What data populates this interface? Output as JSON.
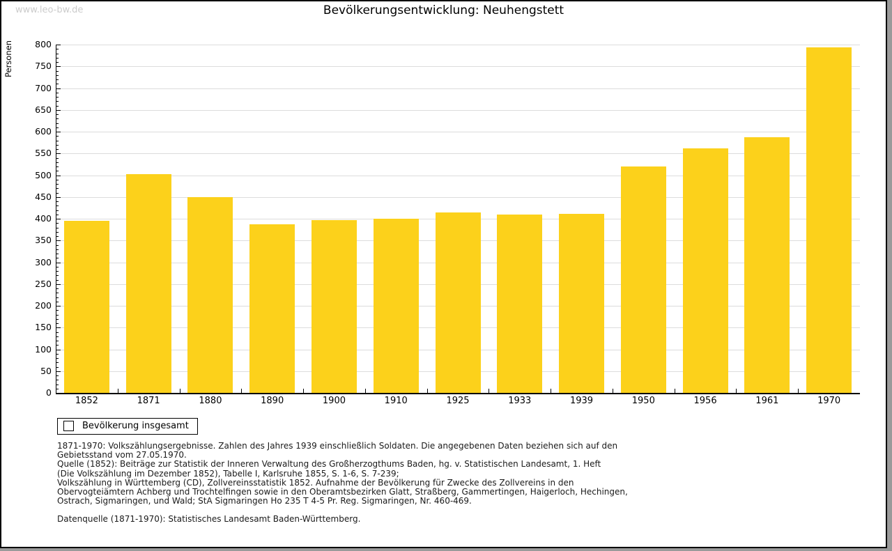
{
  "watermark": "www.leo-bw.de",
  "header": {
    "title": "Bevölkerungsentwicklung: Neuhengstett"
  },
  "chart_data": {
    "type": "bar",
    "title": "Bevölkerungsentwicklung: Neuhengstett",
    "xlabel": "",
    "ylabel": "Personen",
    "categories": [
      "1852",
      "1871",
      "1880",
      "1890",
      "1900",
      "1910",
      "1925",
      "1933",
      "1939",
      "1950",
      "1956",
      "1961",
      "1970"
    ],
    "series": [
      {
        "name": "Bevölkerung insgesamt",
        "values": [
          395,
          502,
          450,
          388,
          397,
          400,
          415,
          410,
          412,
          520,
          561,
          588,
          794
        ]
      }
    ],
    "ylim": [
      0,
      800
    ],
    "ytick_step": 50,
    "minor_tick_step": 10,
    "grid": "horizontal",
    "legend_position": "below-left",
    "colors": {
      "bar": "#FCD11B",
      "gridline": "#DCDCDC",
      "axis": "#000000"
    }
  },
  "legend": {
    "items": [
      {
        "label": "Bevölkerung insgesamt",
        "color": "#FCD11B"
      }
    ]
  },
  "footnotes": {
    "lines": [
      "1871-1970: Volkszählungsergebnisse. Zahlen des Jahres 1939 einschließlich Soldaten. Die angegebenen Daten beziehen sich auf den",
      "Gebietsstand vom 27.05.1970.",
      "Quelle (1852): Beiträge zur Statistik der Inneren Verwaltung des Großherzogthums Baden, hg. v. Statistischen Landesamt, 1. Heft",
      "(Die Volkszählung im Dezember 1852), Tabelle I, Karlsruhe 1855, S. 1-6, S. 7-239;",
      "Volkszählung in Württemberg (CD), Zollvereinsstatistik 1852. Aufnahme der Bevölkerung für Zwecke des Zollvereins in den",
      "Obervogteiämtern Achberg und Trochtelfingen sowie in den Oberamtsbezirken Glatt, Straßberg, Gammertingen, Haigerloch, Hechingen,",
      "Ostrach, Sigmaringen, und Wald; StA Sigmaringen Ho 235 T 4-5 Pr. Reg. Sigmaringen, Nr. 460-469."
    ],
    "datasource": "Datenquelle (1871-1970): Statistisches Landesamt Baden-Württemberg."
  }
}
